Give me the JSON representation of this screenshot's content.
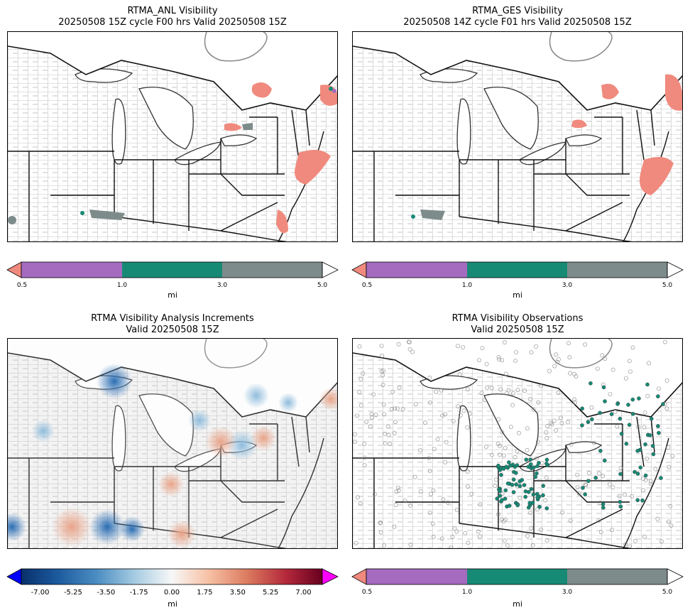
{
  "panels": [
    {
      "id": "anl",
      "title_line1": "RTMA_ANL Visibility",
      "title_line2": "20250508 15Z cycle F00 hrs Valid 20250508 15Z"
    },
    {
      "id": "ges",
      "title_line1": "RTMA_GES Visibility",
      "title_line2": "20250508 14Z cycle F01 hrs Valid 20250508 15Z"
    },
    {
      "id": "inc",
      "title_line1": "RTMA Visibility Analysis Increments",
      "title_line2": "Valid 20250508 15Z"
    },
    {
      "id": "obs",
      "title_line1": "RTMA Visibility Observations",
      "title_line2": "Valid 20250508 15Z"
    }
  ],
  "categorical_colorbar": {
    "ticks": [
      "0.5",
      "1.0",
      "3.0",
      "5.0"
    ],
    "unit": "mi",
    "colors": {
      "under": "#f08a7e",
      "c1": "#a56bbf",
      "c2": "#178a76",
      "c3": "#7e8b8b",
      "over": "#ffffff"
    }
  },
  "diverging_colorbar": {
    "ticks": [
      "-7.00",
      "-5.25",
      "-3.50",
      "-1.75",
      "0.00",
      "1.75",
      "3.50",
      "5.25",
      "7.00"
    ],
    "unit": "mi",
    "range": [
      -8,
      8
    ],
    "colors": {
      "under": "#0000ff",
      "over": "#ff00ff",
      "low": "#08306b",
      "mid": "#f7f7f7",
      "high": "#67001f"
    }
  }
}
